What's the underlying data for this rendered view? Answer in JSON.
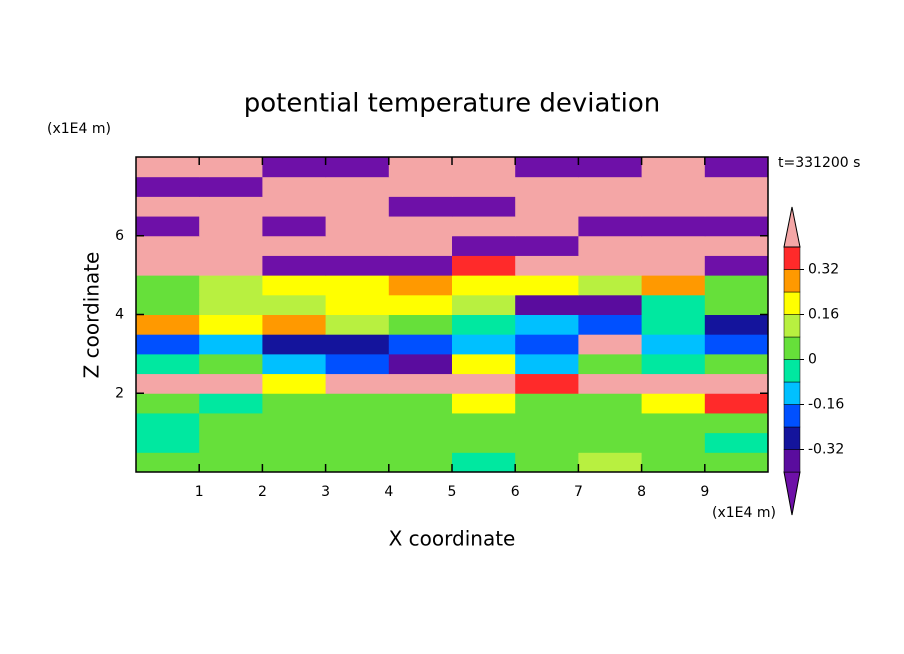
{
  "chart_data": {
    "type": "contour",
    "title": "potential temperature deviation",
    "x_label": "X coordinate",
    "y_label": "Z coordinate",
    "x_unit": "(x1E4 m)",
    "y_unit": "(x1E4 m)",
    "time_label": "t=331200 s",
    "xlim": [
      0,
      10
    ],
    "ylim": [
      0,
      8
    ],
    "xticks": [
      1,
      2,
      3,
      4,
      5,
      6,
      7,
      8,
      9
    ],
    "yticks": [
      2,
      4,
      6
    ],
    "field": {
      "x": [
        0.5,
        1.5,
        2.5,
        3.5,
        4.5,
        5.5,
        6.5,
        7.5,
        8.5,
        9.5
      ],
      "z": [
        0.25,
        0.75,
        1.25,
        1.75,
        2.25,
        2.75,
        3.25,
        3.75,
        4.25,
        4.75,
        5.25,
        5.75,
        6.25,
        6.75,
        7.25,
        7.75
      ],
      "values": [
        [
          0,
          0.04,
          0.04,
          0.04,
          0.04,
          -0.04,
          0.04,
          0.12,
          0.04,
          0
        ],
        [
          -0.04,
          0.04,
          0,
          0.04,
          0.04,
          0.04,
          0,
          0.04,
          0.04,
          -0.04
        ],
        [
          -0.04,
          0,
          0.04,
          0.04,
          0.04,
          0.04,
          0.04,
          0.04,
          0.04,
          0
        ],
        [
          0.04,
          -0.04,
          0.04,
          0.04,
          0.04,
          0.2,
          0.04,
          0.04,
          0.2,
          0.36
        ],
        [
          0.44,
          0.44,
          0.2,
          0.44,
          0.44,
          0.44,
          0.36,
          0.44,
          0.44,
          0.44
        ],
        [
          -0.04,
          0.04,
          -0.12,
          -0.2,
          -0.36,
          0.2,
          -0.12,
          0.04,
          -0.04,
          0.04
        ],
        [
          -0.2,
          -0.12,
          -0.28,
          -0.28,
          -0.2,
          -0.12,
          -0.2,
          0.44,
          -0.12,
          -0.2
        ],
        [
          0.28,
          0.2,
          0.28,
          0.12,
          0.04,
          -0.04,
          -0.12,
          -0.2,
          -0.04,
          -0.28
        ],
        [
          0.04,
          0.12,
          0.12,
          0.2,
          0.2,
          0.12,
          -0.36,
          -0.36,
          -0.04,
          0.04
        ],
        [
          0.04,
          0.12,
          0.2,
          0.2,
          0.28,
          0.2,
          0.2,
          0.12,
          0.28,
          0.04
        ],
        [
          0.44,
          0.44,
          -0.44,
          -0.44,
          -0.44,
          0.36,
          0.44,
          0.44,
          0.44,
          -0.44
        ],
        [
          0.44,
          0.44,
          0.44,
          0.44,
          0.44,
          -0.44,
          -0.44,
          0.44,
          0.44,
          0.44
        ],
        [
          -0.44,
          0.44,
          -0.44,
          0.44,
          0.44,
          0.44,
          0.44,
          -0.44,
          -0.44,
          -0.44
        ],
        [
          0.44,
          0.44,
          0.44,
          0.44,
          -0.44,
          -0.44,
          0.44,
          0.44,
          0.44,
          0.44
        ],
        [
          -0.44,
          -0.44,
          0.44,
          0.44,
          0.44,
          0.44,
          0.44,
          0.44,
          0.44,
          0.44
        ],
        [
          0.44,
          0.44,
          -0.44,
          -0.44,
          0.44,
          0.44,
          -0.44,
          -0.44,
          0.44,
          -0.44
        ]
      ]
    },
    "colorbar": {
      "levels": [
        -0.4,
        -0.32,
        -0.24,
        -0.16,
        -0.08,
        0,
        0.08,
        0.16,
        0.24,
        0.32,
        0.4
      ],
      "colors": [
        "#6e10a8",
        "#5a0c9e",
        "#14149c",
        "#0050ff",
        "#00c0ff",
        "#00e8a0",
        "#66e03a",
        "#b8f040",
        "#ffff00",
        "#ff9900",
        "#ff2a2a",
        "#f4a6a6"
      ],
      "ticks": [
        -0.32,
        -0.16,
        0,
        0.16,
        0.32
      ]
    }
  }
}
